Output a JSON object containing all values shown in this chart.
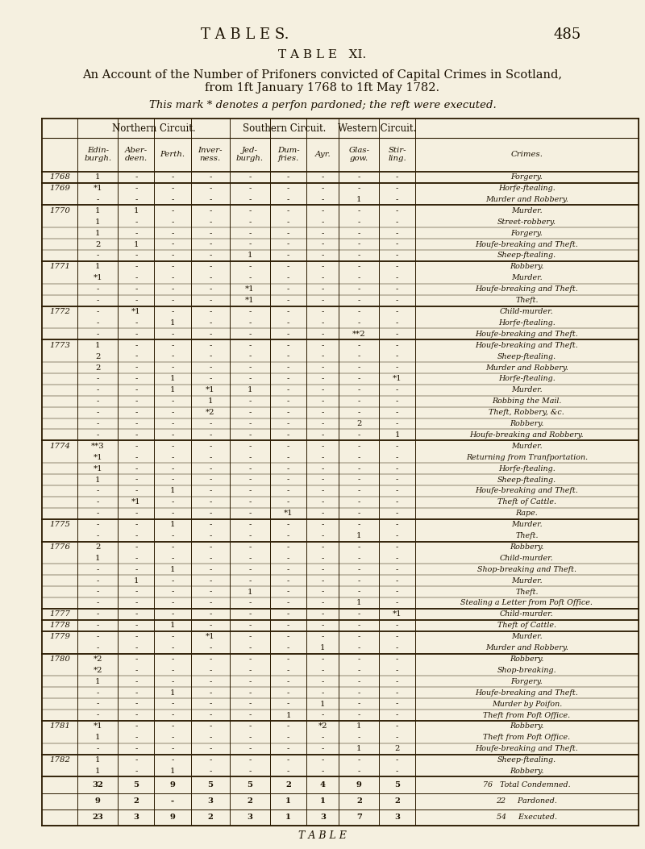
{
  "title_header": "T A B L E S.",
  "page_number": "485",
  "subtitle": "T A B L E   XI.",
  "description_line1": "An Account of the Number of Prifoners convicted of Capital Crimes in Scotland,",
  "description_line2": "from 1ft January 1768 to 1ft May 1782.",
  "note": "This mark * denotes a perfon pardoned; the reft were executed.",
  "col_headers": [
    "Edin-\nburgh.",
    "Aber-\ndeen.",
    "Perth.",
    "Inver-\nness.",
    "Jed-\nburgh.",
    "Dum-\nfries.",
    "Ayr.",
    "Glas-\ngow.",
    "Stir-\nling.",
    "Crimes."
  ],
  "rows": [
    {
      "year": "1768",
      "data": [
        "1",
        "-",
        "-",
        "-",
        "-",
        "-",
        "-",
        "-",
        "-",
        "Forgery."
      ]
    },
    {
      "year": "1769",
      "data": [
        "*1",
        "-",
        "-",
        "-",
        "-",
        "-",
        "-",
        "-",
        "-",
        "Horfe-ftealing."
      ]
    },
    {
      "year": "",
      "data": [
        "-",
        "-",
        "-",
        "-",
        "-",
        "-",
        "-",
        "1",
        "-",
        "Murder and Robbery."
      ]
    },
    {
      "year": "1770",
      "data": [
        "1",
        "1",
        "-",
        "-",
        "-",
        "-",
        "-",
        "-",
        "-",
        "Murder."
      ]
    },
    {
      "year": "",
      "data": [
        "1",
        "-",
        "-",
        "-",
        "-",
        "-",
        "-",
        "-",
        "-",
        "Street-robbery."
      ]
    },
    {
      "year": "",
      "data": [
        "1",
        "-",
        "-",
        "-",
        "-",
        "-",
        "-",
        "-",
        "-",
        "Forgery."
      ]
    },
    {
      "year": "",
      "data": [
        "2",
        "1",
        "-",
        "-",
        "-",
        "-",
        "-",
        "-",
        "-",
        "Houfe-breaking and Theft."
      ]
    },
    {
      "year": "",
      "data": [
        "-",
        "-",
        "-",
        "-",
        "1",
        "-",
        "-",
        "-",
        "-",
        "Sheep-ftealing."
      ]
    },
    {
      "year": "1771",
      "data": [
        "1",
        "-",
        "-",
        "-",
        "-",
        "-",
        "-",
        "-",
        "-",
        "Robbery."
      ]
    },
    {
      "year": "",
      "data": [
        "*1",
        "-",
        "-",
        "-",
        "-",
        "-",
        "-",
        "-",
        "-",
        "Murder."
      ]
    },
    {
      "year": "",
      "data": [
        "-",
        "-",
        "-",
        "-",
        "*1",
        "-",
        "-",
        "-",
        "-",
        "Houfe-breaking and Theft."
      ]
    },
    {
      "year": "",
      "data": [
        "-",
        "-",
        "-",
        "-",
        "*1",
        "-",
        "-",
        "-",
        "-",
        "Theft."
      ]
    },
    {
      "year": "1772",
      "data": [
        "-",
        "*1",
        "-",
        "-",
        "-",
        "-",
        "-",
        "-",
        "-",
        "Child-murder."
      ]
    },
    {
      "year": "",
      "data": [
        "-",
        "-",
        "1",
        "-",
        "-",
        "-",
        "-",
        "-",
        "-",
        "Horfe-ftealing."
      ]
    },
    {
      "year": "",
      "data": [
        "-",
        "-",
        "-",
        "-",
        "-",
        "-",
        "-",
        "**2",
        "-",
        "Houfe-breaking and Theft."
      ]
    },
    {
      "year": "1773",
      "data": [
        "1",
        "-",
        "-",
        "-",
        "-",
        "-",
        "-",
        "-",
        "-",
        "Houfe-breaking and Theft."
      ]
    },
    {
      "year": "",
      "data": [
        "2",
        "-",
        "-",
        "-",
        "-",
        "-",
        "-",
        "-",
        "-",
        "Sheep-ftealing."
      ]
    },
    {
      "year": "",
      "data": [
        "2",
        "-",
        "-",
        "-",
        "-",
        "-",
        "-",
        "-",
        "-",
        "Murder and Robbery."
      ]
    },
    {
      "year": "",
      "data": [
        "-",
        "-",
        "1",
        "-",
        "-",
        "-",
        "-",
        "-",
        "*1",
        "Horfe-ftealing."
      ]
    },
    {
      "year": "",
      "data": [
        "-",
        "-",
        "1",
        "*1",
        "1",
        "-",
        "-",
        "-",
        "-",
        "Murder."
      ]
    },
    {
      "year": "",
      "data": [
        "-",
        "-",
        "-",
        "1",
        "-",
        "-",
        "-",
        "-",
        "-",
        "Robbing the Mail."
      ]
    },
    {
      "year": "",
      "data": [
        "-",
        "-",
        "-",
        "*2",
        "-",
        "-",
        "-",
        "-",
        "-",
        "Theft, Robbery, &c."
      ]
    },
    {
      "year": "",
      "data": [
        "-",
        "-",
        "-",
        "-",
        "-",
        "-",
        "-",
        "2",
        "-",
        "Robbery."
      ]
    },
    {
      "year": "",
      "data": [
        "-",
        "-",
        "-",
        "-",
        "-",
        "-",
        "-",
        "-",
        "1",
        "Houfe-breaking and Robbery."
      ]
    },
    {
      "year": "1774",
      "data": [
        "**3",
        "-",
        "-",
        "-",
        "-",
        "-",
        "-",
        "-",
        "-",
        "Murder."
      ]
    },
    {
      "year": "",
      "data": [
        "*1",
        "-",
        "-",
        "-",
        "-",
        "-",
        "-",
        "-",
        "-",
        "Returning from Tranfportation."
      ]
    },
    {
      "year": "",
      "data": [
        "*1",
        "-",
        "-",
        "-",
        "-",
        "-",
        "-",
        "-",
        "-",
        "Horfe-ftealing."
      ]
    },
    {
      "year": "",
      "data": [
        "1",
        "-",
        "-",
        "-",
        "-",
        "-",
        "-",
        "-",
        "-",
        "Sheep-ftealing."
      ]
    },
    {
      "year": "",
      "data": [
        "-",
        "-",
        "1",
        "-",
        "-",
        "-",
        "-",
        "-",
        "-",
        "Houfe-breaking and Theft."
      ]
    },
    {
      "year": "",
      "data": [
        "-",
        "*1",
        "-",
        "-",
        "-",
        "-",
        "-",
        "-",
        "-",
        "Theft of Cattle."
      ]
    },
    {
      "year": "",
      "data": [
        "-",
        "-",
        "-",
        "-",
        "-",
        "*1",
        "-",
        "-",
        "-",
        "Rape."
      ]
    },
    {
      "year": "1775",
      "data": [
        "-",
        "-",
        "1",
        "-",
        "-",
        "-",
        "-",
        "-",
        "-",
        "Murder."
      ]
    },
    {
      "year": "",
      "data": [
        "-",
        "-",
        "-",
        "-",
        "-",
        "-",
        "-",
        "1",
        "-",
        "Theft."
      ]
    },
    {
      "year": "1776",
      "data": [
        "2",
        "-",
        "-",
        "-",
        "-",
        "-",
        "-",
        "-",
        "-",
        "Robbery."
      ]
    },
    {
      "year": "",
      "data": [
        "1",
        "-",
        "-",
        "-",
        "-",
        "-",
        "-",
        "-",
        "-",
        "Child-murder."
      ]
    },
    {
      "year": "",
      "data": [
        "-",
        "-",
        "1",
        "-",
        "-",
        "-",
        "-",
        "-",
        "-",
        "Shop-breaking and Theft."
      ]
    },
    {
      "year": "",
      "data": [
        "-",
        "1",
        "-",
        "-",
        "-",
        "-",
        "-",
        "-",
        "-",
        "Murder."
      ]
    },
    {
      "year": "",
      "data": [
        "-",
        "-",
        "-",
        "-",
        "1",
        "-",
        "-",
        "-",
        "-",
        "Theft."
      ]
    },
    {
      "year": "",
      "data": [
        "-",
        "-",
        "-",
        "-",
        "-",
        "-",
        "-",
        "1",
        "-",
        "Stealing a Letter from Poft Office."
      ]
    },
    {
      "year": "1777",
      "data": [
        "-",
        "-",
        "-",
        "-",
        "-",
        "-",
        "-",
        "-",
        "*1",
        "Child-murder."
      ]
    },
    {
      "year": "1778",
      "data": [
        "-",
        "-",
        "1",
        "-",
        "-",
        "-",
        "-",
        "-",
        "-",
        "Theft of Cattle."
      ]
    },
    {
      "year": "1779",
      "data": [
        "-",
        "-",
        "-",
        "*1",
        "-",
        "-",
        "-",
        "-",
        "-",
        "Murder."
      ]
    },
    {
      "year": "",
      "data": [
        "-",
        "-",
        "-",
        "-",
        "-",
        "-",
        "1",
        "-",
        "-",
        "Murder and Robbery."
      ]
    },
    {
      "year": "1780",
      "data": [
        "*2",
        "-",
        "-",
        "-",
        "-",
        "-",
        "-",
        "-",
        "-",
        "Robbery."
      ]
    },
    {
      "year": "",
      "data": [
        "*2",
        "-",
        "-",
        "-",
        "-",
        "-",
        "-",
        "-",
        "-",
        "Shop-breaking."
      ]
    },
    {
      "year": "",
      "data": [
        "1",
        "-",
        "-",
        "-",
        "-",
        "-",
        "-",
        "-",
        "-",
        "Forgery."
      ]
    },
    {
      "year": "",
      "data": [
        "-",
        "-",
        "1",
        "-",
        "-",
        "-",
        "-",
        "-",
        "-",
        "Houfe-breaking and Theft."
      ]
    },
    {
      "year": "",
      "data": [
        "-",
        "-",
        "-",
        "-",
        "-",
        "-",
        "1",
        "-",
        "-",
        "Murder by Poifon."
      ]
    },
    {
      "year": "",
      "data": [
        "-",
        "-",
        "-",
        "-",
        "-",
        "1",
        "-",
        "-",
        "-",
        "Theft from Poft Office."
      ]
    },
    {
      "year": "1781",
      "data": [
        "*1",
        "-",
        "-",
        "-",
        "-",
        "-",
        "*2",
        "1",
        "-",
        "Robbery."
      ]
    },
    {
      "year": "",
      "data": [
        "1",
        "-",
        "-",
        "-",
        "-",
        "-",
        "-",
        "-",
        "-",
        "Theft from Poft Office."
      ]
    },
    {
      "year": "",
      "data": [
        "-",
        "-",
        "-",
        "-",
        "-",
        "-",
        "-",
        "1",
        "2",
        "Houfe-breaking and Theft."
      ]
    },
    {
      "year": "1782",
      "data": [
        "1",
        "-",
        "-",
        "-",
        "-",
        "-",
        "-",
        "-",
        "-",
        "Sheep-ftealing."
      ]
    },
    {
      "year": "",
      "data": [
        "1",
        "-",
        "1",
        "-",
        "-",
        "-",
        "-",
        "-",
        "-",
        "Robbery."
      ]
    }
  ],
  "totals": {
    "condemned": [
      "32",
      "5",
      "9",
      "5",
      "5",
      "2",
      "4",
      "9",
      "5",
      "76   Total Condemned."
    ],
    "pardoned": [
      "9",
      "2",
      "-",
      "3",
      "2",
      "1",
      "1",
      "2",
      "2",
      "22     Pardoned."
    ],
    "executed": [
      "23",
      "3",
      "9",
      "2",
      "3",
      "1",
      "3",
      "7",
      "3",
      "54     Executed."
    ]
  },
  "bg_color": "#f5f0e0",
  "text_color": "#1a1000",
  "line_color": "#2a1a00"
}
